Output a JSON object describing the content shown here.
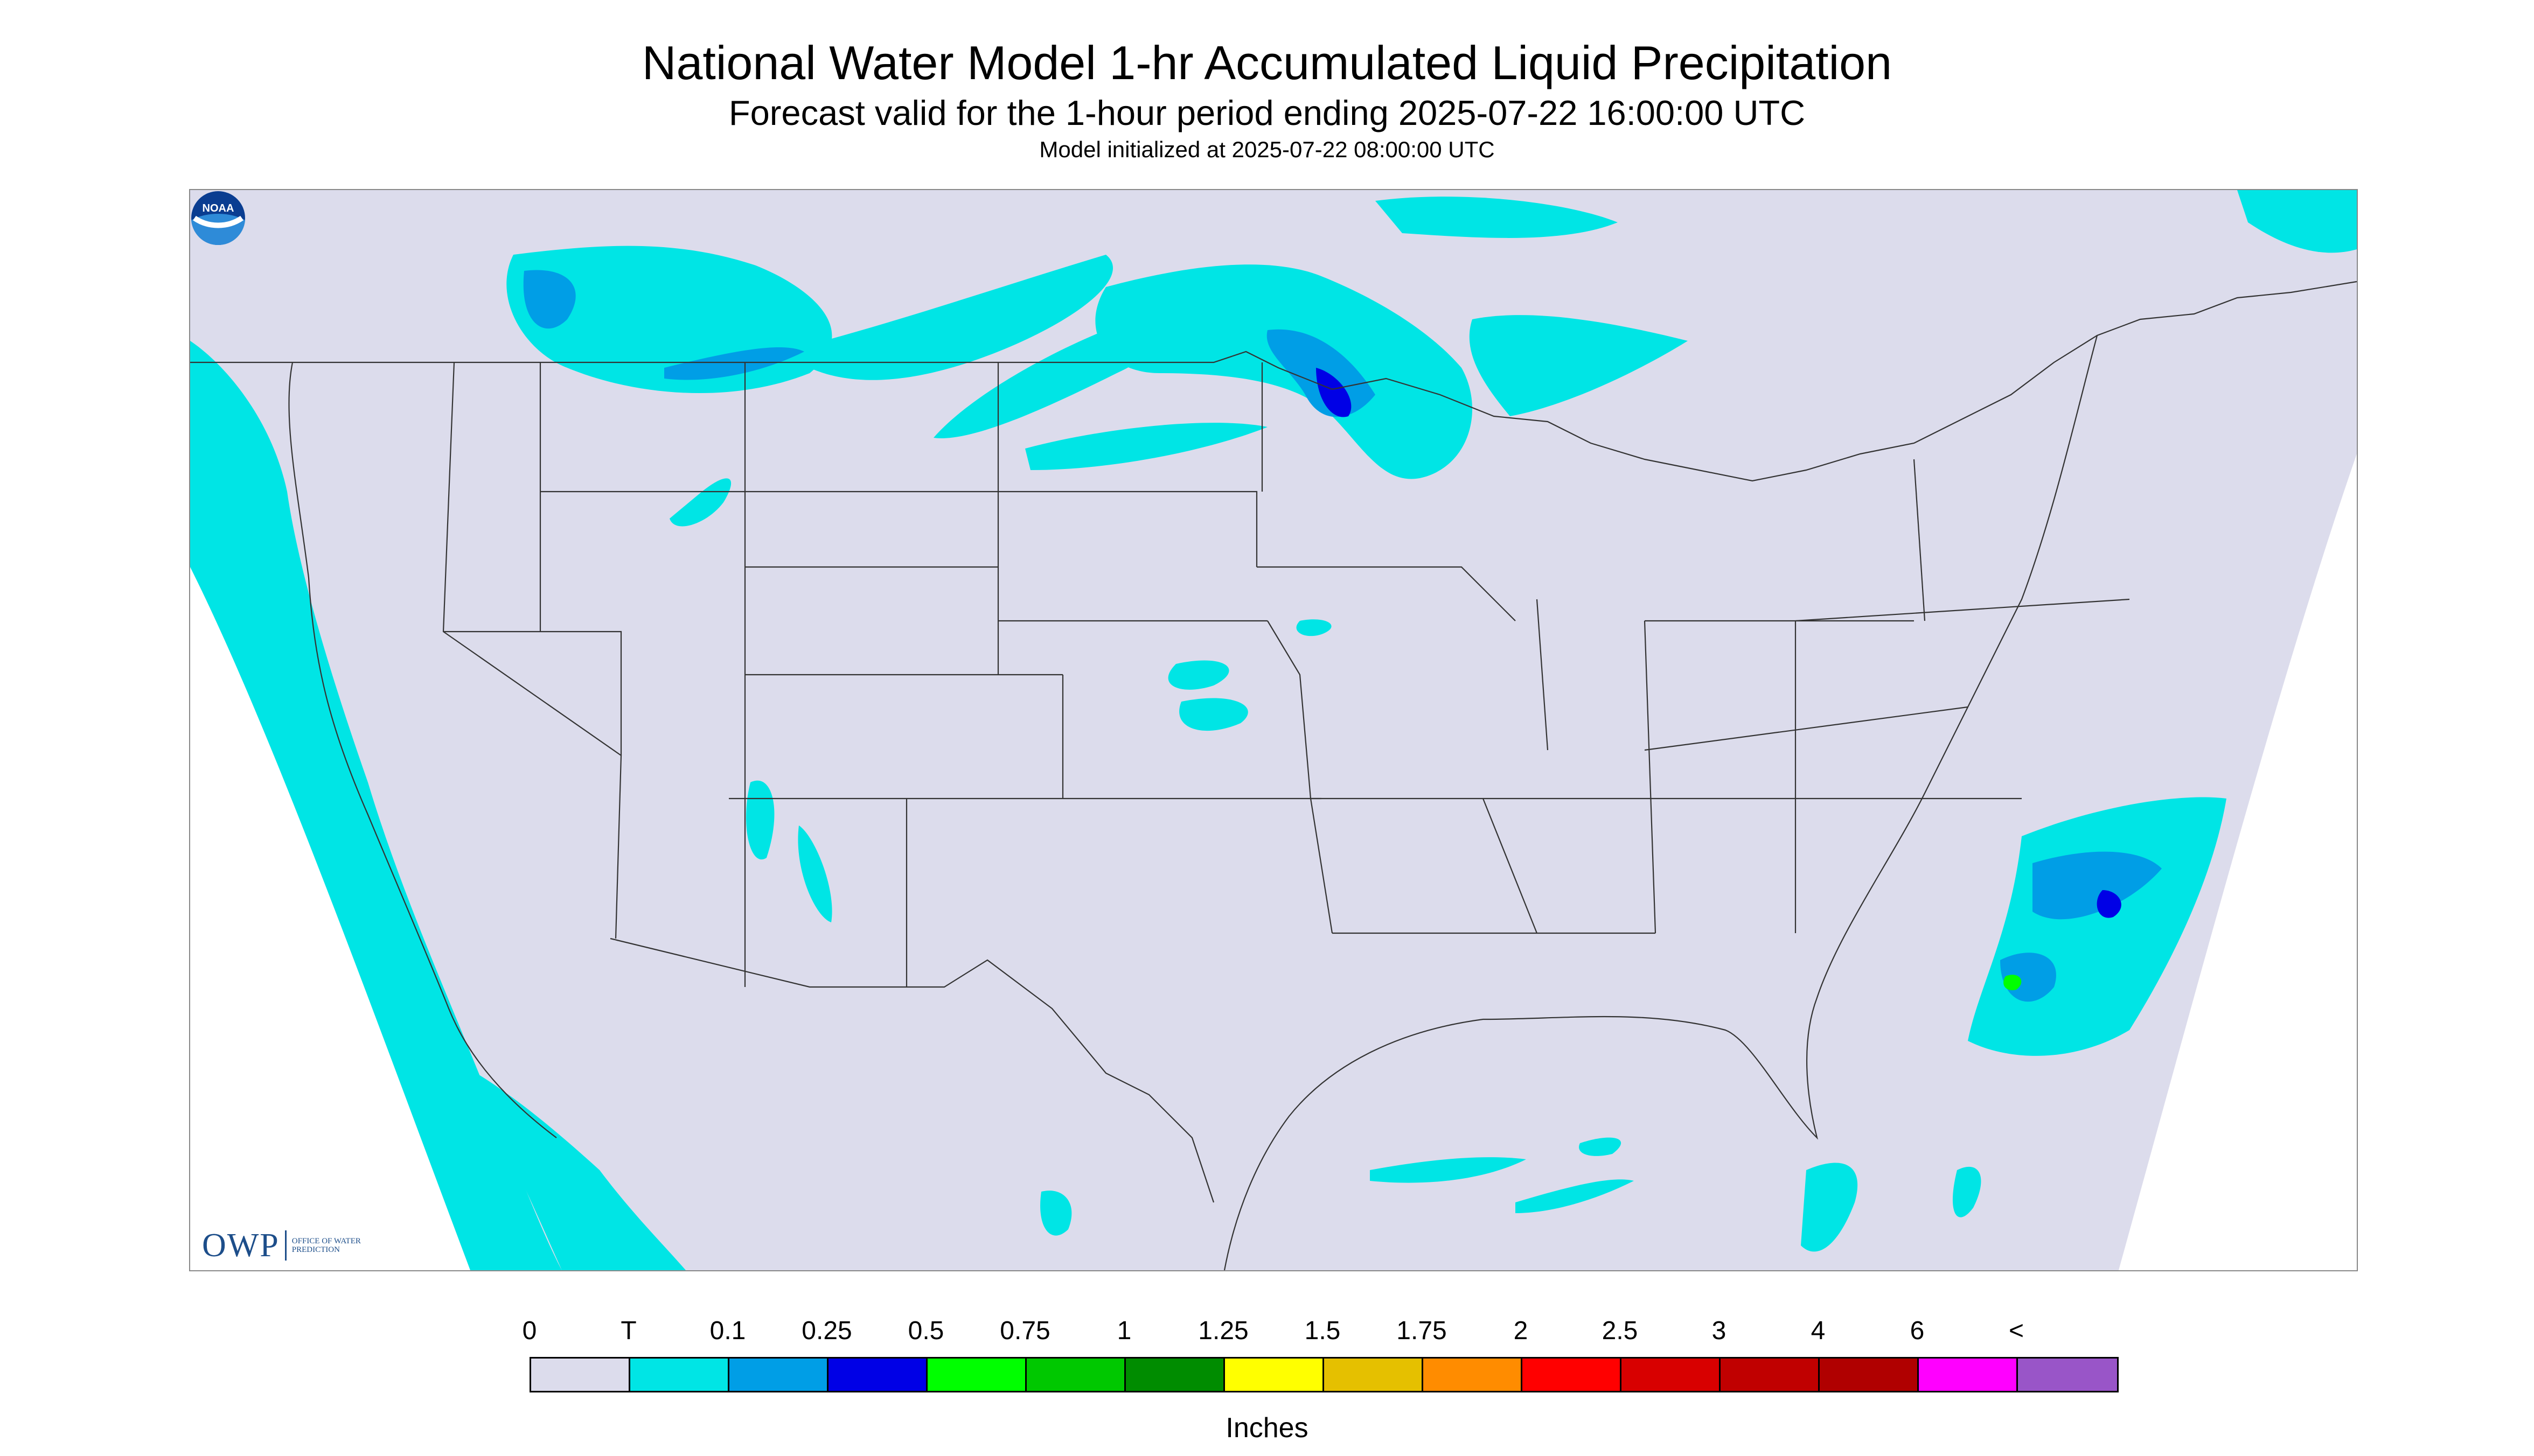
{
  "header": {
    "title": "National Water Model 1-hr Accumulated Liquid Precipitation",
    "subtitle": "Forecast valid for the 1-hour period ending 2025-07-22 16:00:00 UTC",
    "init_line": "Model initialized at 2025-07-22 08:00:00 UTC"
  },
  "map": {
    "background_color": "#dcdcec",
    "outside_color": "#ffffff",
    "boundary_color": "#333333",
    "precip_colors": {
      "trace": "#00e5e5",
      "light": "#009ee6",
      "moderate": "#0000e6",
      "heavy": "#00ff00"
    }
  },
  "logos": {
    "owp_mark": "OWP",
    "owp_text": "Office of Water Prediction",
    "noaa_icon": "noaa-logo-icon",
    "noaa_text": "NOAA"
  },
  "legend": {
    "ticks": [
      "0",
      "T",
      "0.1",
      "0.25",
      "0.5",
      "0.75",
      "1",
      "1.25",
      "1.5",
      "1.75",
      "2",
      "2.5",
      "3",
      "4",
      "6",
      "<"
    ],
    "colors": [
      "#dcdcec",
      "#00e5e5",
      "#009ee6",
      "#0000e6",
      "#00ff00",
      "#00c800",
      "#008c00",
      "#ffff00",
      "#e5c000",
      "#ff8c00",
      "#ff0000",
      "#d80000",
      "#c00000",
      "#b00000",
      "#ff00ff",
      "#9955c8"
    ],
    "units": "Inches"
  }
}
